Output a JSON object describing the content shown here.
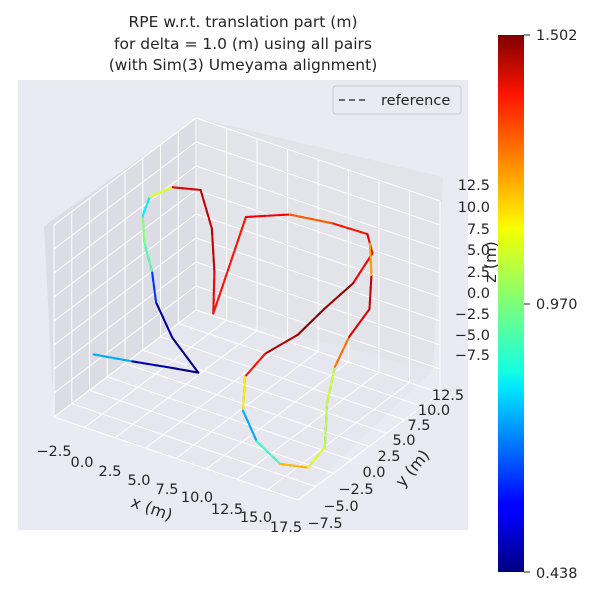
{
  "chart_data": {
    "type": "line",
    "title": [
      "RPE w.r.t. translation part (m)",
      "for delta = 1.0 (m) using all pairs",
      "(with Sim(3) Umeyama alignment)"
    ],
    "xlabel": "x (m)",
    "ylabel": "y (m)",
    "zlabel": "z (m)",
    "grid": true,
    "legend": {
      "entries": [
        "reference"
      ],
      "placement": "top-right"
    },
    "x_ticks": [
      "−2.5",
      "0.0",
      "2.5",
      "5.0",
      "7.5",
      "10.0",
      "12.5",
      "15.0",
      "17.5"
    ],
    "y_ticks": [
      "−7.5",
      "−5.0",
      "−2.5",
      "0.0",
      "2.5",
      "5.0",
      "7.5",
      "10.0",
      "12.5"
    ],
    "z_ticks": [
      "−7.5",
      "−5.0",
      "−2.5",
      "0.0",
      "2.5",
      "5.0",
      "7.5",
      "10.0",
      "12.5"
    ],
    "xlim": [
      -2.5,
      17.5
    ],
    "ylim": [
      -7.5,
      12.5
    ],
    "zlim": [
      -7.5,
      12.5
    ],
    "colorbar": {
      "colormap": "jet",
      "min": 0.438,
      "max": 1.502,
      "ticks": [
        "1.502",
        "0.970",
        "0.438"
      ]
    },
    "series": [
      {
        "name": "reference",
        "style": "dashed",
        "color": "#6b6b6b"
      }
    ],
    "trajectory": [
      {
        "x": -1.0,
        "y": -4.5,
        "z": -2.0,
        "rpe": 0.95
      },
      {
        "x": 2.0,
        "y": -4.2,
        "z": -1.6,
        "rpe": 0.55
      },
      {
        "x": 5.0,
        "y": -3.8,
        "z": -1.2,
        "rpe": 0.45
      },
      {
        "x": 7.0,
        "y": -3.5,
        "z": -1.0,
        "rpe": 0.44
      },
      {
        "x": 4.0,
        "y": -2.0,
        "z": 0.5,
        "rpe": 0.46
      },
      {
        "x": 1.5,
        "y": 0.0,
        "z": 2.0,
        "rpe": 0.5
      },
      {
        "x": 0.0,
        "y": 2.0,
        "z": 3.5,
        "rpe": 0.75
      },
      {
        "x": -1.5,
        "y": 3.5,
        "z": 5.0,
        "rpe": 1.1
      },
      {
        "x": -2.5,
        "y": 5.0,
        "z": 6.5,
        "rpe": 0.85
      },
      {
        "x": -2.8,
        "y": 6.5,
        "z": 7.5,
        "rpe": 0.8
      },
      {
        "x": -1.5,
        "y": 7.5,
        "z": 8.5,
        "rpe": 1.35
      },
      {
        "x": 0.5,
        "y": 8.0,
        "z": 8.8,
        "rpe": 1.45
      },
      {
        "x": 2.0,
        "y": 7.0,
        "z": 6.0,
        "rpe": 1.4
      },
      {
        "x": 2.5,
        "y": 6.5,
        "z": 2.0,
        "rpe": 1.45
      },
      {
        "x": 2.7,
        "y": 6.0,
        "z": -2.0,
        "rpe": 1.3
      },
      {
        "x": 4.5,
        "y": 7.5,
        "z": 8.0,
        "rpe": 1.4
      },
      {
        "x": 7.5,
        "y": 8.5,
        "z": 9.0,
        "rpe": 1.35
      },
      {
        "x": 10.5,
        "y": 9.5,
        "z": 8.8,
        "rpe": 1.2
      },
      {
        "x": 13.0,
        "y": 10.0,
        "z": 8.5,
        "rpe": 1.5
      },
      {
        "x": 14.0,
        "y": 9.0,
        "z": 7.5,
        "rpe": 1.3
      },
      {
        "x": 13.0,
        "y": 8.0,
        "z": 4.5,
        "rpe": 1.45
      },
      {
        "x": 11.5,
        "y": 6.5,
        "z": 2.0,
        "rpe": 1.5
      },
      {
        "x": 10.5,
        "y": 4.5,
        "z": 0.0,
        "rpe": 1.48
      },
      {
        "x": 9.0,
        "y": 2.5,
        "z": -1.5,
        "rpe": 1.4
      },
      {
        "x": 8.5,
        "y": 0.5,
        "z": -3.0,
        "rpe": 1.3
      },
      {
        "x": 9.5,
        "y": -1.5,
        "z": -5.0,
        "rpe": 0.95
      },
      {
        "x": 11.5,
        "y": -3.0,
        "z": -6.5,
        "rpe": 0.55
      },
      {
        "x": 14.0,
        "y": -4.0,
        "z": -7.2,
        "rpe": 1.25
      },
      {
        "x": 16.0,
        "y": -3.5,
        "z": -7.0,
        "rpe": 1.1
      },
      {
        "x": 16.5,
        "y": -2.0,
        "z": -5.5,
        "rpe": 1.05
      },
      {
        "x": 15.5,
        "y": 0.0,
        "z": -2.5,
        "rpe": 1.0
      },
      {
        "x": 15.0,
        "y": 2.0,
        "z": 0.0,
        "rpe": 1.1
      },
      {
        "x": 15.0,
        "y": 4.0,
        "z": 2.0,
        "rpe": 1.4
      },
      {
        "x": 15.5,
        "y": 6.0,
        "z": 4.0,
        "rpe": 1.4
      },
      {
        "x": 14.5,
        "y": 8.0,
        "z": 6.0,
        "rpe": 1.45
      },
      {
        "x": 13.5,
        "y": 9.5,
        "z": 8.0,
        "rpe": 0.95
      }
    ]
  }
}
